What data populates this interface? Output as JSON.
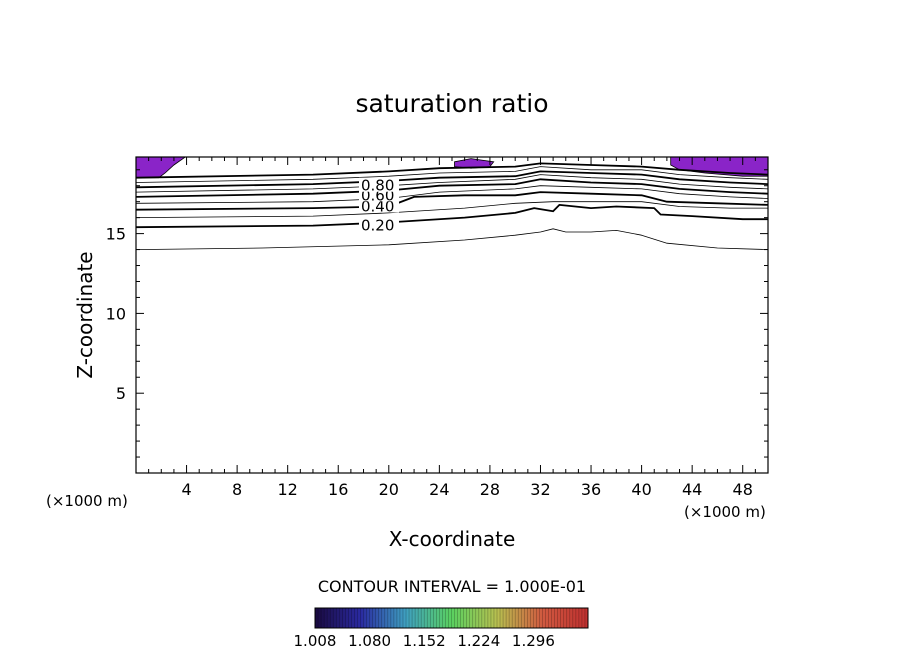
{
  "chart_data": {
    "type": "contour",
    "title": "saturation ratio",
    "xlabel": "X-coordinate",
    "ylabel": "Z-coordinate",
    "x_unit_left": "(×1000 m)",
    "x_unit_right": "(×1000 m)",
    "xlim": [
      0,
      50
    ],
    "ylim": [
      0,
      19.8
    ],
    "x_ticks": [
      4,
      8,
      12,
      16,
      20,
      24,
      28,
      32,
      36,
      40,
      44,
      48
    ],
    "y_ticks": [
      5,
      10,
      15
    ],
    "contour_interval_text": "CONTOUR INTERVAL = 1.000E-01",
    "contour_labels": [
      {
        "text": "0.20",
        "x": 17.8,
        "y": 15.5
      },
      {
        "text": "0.40",
        "x": 17.8,
        "y": 16.7
      },
      {
        "text": "0.60",
        "x": 17.8,
        "y": 17.4
      },
      {
        "text": "0.80",
        "x": 17.8,
        "y": 18.0
      }
    ],
    "contour_lines": [
      {
        "level": 0.1,
        "bold": false,
        "points": [
          [
            0,
            14.0
          ],
          [
            10,
            14.1
          ],
          [
            20,
            14.3
          ],
          [
            26,
            14.6
          ],
          [
            30,
            14.9
          ],
          [
            32,
            15.1
          ],
          [
            33,
            15.3
          ],
          [
            34,
            15.1
          ],
          [
            36,
            15.1
          ],
          [
            38,
            15.2
          ],
          [
            40,
            14.9
          ],
          [
            42,
            14.4
          ],
          [
            46,
            14.1
          ],
          [
            50,
            14.0
          ]
        ]
      },
      {
        "level": 0.2,
        "bold": true,
        "points": [
          [
            0,
            15.4
          ],
          [
            14,
            15.5
          ],
          [
            20,
            15.7
          ],
          [
            26,
            16.0
          ],
          [
            30,
            16.3
          ],
          [
            31.5,
            16.6
          ],
          [
            33,
            16.4
          ],
          [
            33.5,
            16.8
          ],
          [
            36,
            16.6
          ],
          [
            38,
            16.7
          ],
          [
            41,
            16.6
          ],
          [
            41.5,
            16.2
          ],
          [
            44,
            16.1
          ],
          [
            48,
            15.9
          ],
          [
            50,
            15.9
          ]
        ]
      },
      {
        "level": 0.3,
        "bold": false,
        "points": [
          [
            0,
            16.0
          ],
          [
            14,
            16.1
          ],
          [
            20,
            16.3
          ],
          [
            26,
            16.6
          ],
          [
            30,
            16.9
          ],
          [
            33,
            17.0
          ],
          [
            36,
            17.0
          ],
          [
            40,
            17.0
          ],
          [
            43,
            16.7
          ],
          [
            47,
            16.6
          ],
          [
            50,
            16.6
          ]
        ]
      },
      {
        "level": 0.4,
        "bold": true,
        "points": [
          [
            0,
            16.5
          ],
          [
            14,
            16.6
          ],
          [
            20,
            16.7
          ],
          [
            22,
            17.3
          ],
          [
            26,
            17.4
          ],
          [
            30,
            17.4
          ],
          [
            32,
            17.6
          ],
          [
            36,
            17.5
          ],
          [
            40,
            17.4
          ],
          [
            42,
            17.0
          ],
          [
            46,
            16.9
          ],
          [
            50,
            16.8
          ]
        ]
      },
      {
        "level": 0.5,
        "bold": false,
        "points": [
          [
            0,
            16.9
          ],
          [
            14,
            17.0
          ],
          [
            20,
            17.2
          ],
          [
            24,
            17.6
          ],
          [
            30,
            17.8
          ],
          [
            32,
            18.0
          ],
          [
            36,
            17.9
          ],
          [
            40,
            17.8
          ],
          [
            43,
            17.5
          ],
          [
            47,
            17.3
          ],
          [
            50,
            17.2
          ]
        ]
      },
      {
        "level": 0.6,
        "bold": true,
        "points": [
          [
            0,
            17.3
          ],
          [
            14,
            17.5
          ],
          [
            20,
            17.7
          ],
          [
            24,
            18.0
          ],
          [
            30,
            18.1
          ],
          [
            32,
            18.4
          ],
          [
            36,
            18.2
          ],
          [
            40,
            18.1
          ],
          [
            43,
            17.8
          ],
          [
            47,
            17.6
          ],
          [
            50,
            17.5
          ]
        ]
      },
      {
        "level": 0.7,
        "bold": false,
        "points": [
          [
            0,
            17.6
          ],
          [
            14,
            17.8
          ],
          [
            20,
            18.0
          ],
          [
            24,
            18.2
          ],
          [
            30,
            18.4
          ],
          [
            32,
            18.7
          ],
          [
            36,
            18.5
          ],
          [
            40,
            18.4
          ],
          [
            43,
            18.1
          ],
          [
            47,
            17.9
          ],
          [
            50,
            17.8
          ]
        ]
      },
      {
        "level": 0.8,
        "bold": true,
        "points": [
          [
            0,
            17.9
          ],
          [
            14,
            18.1
          ],
          [
            20,
            18.3
          ],
          [
            24,
            18.5
          ],
          [
            30,
            18.6
          ],
          [
            32,
            18.9
          ],
          [
            36,
            18.8
          ],
          [
            40,
            18.7
          ],
          [
            43,
            18.4
          ],
          [
            47,
            18.2
          ],
          [
            50,
            18.1
          ]
        ]
      },
      {
        "level": 0.9,
        "bold": false,
        "points": [
          [
            0,
            18.2
          ],
          [
            14,
            18.4
          ],
          [
            20,
            18.6
          ],
          [
            24,
            18.8
          ],
          [
            30,
            18.9
          ],
          [
            32,
            19.2
          ],
          [
            36,
            19.0
          ],
          [
            40,
            19.0
          ],
          [
            43,
            18.7
          ],
          [
            47,
            18.5
          ],
          [
            50,
            18.4
          ]
        ]
      },
      {
        "level": 1.0,
        "bold": true,
        "points": [
          [
            0,
            18.5
          ],
          [
            14,
            18.7
          ],
          [
            20,
            18.9
          ],
          [
            24,
            19.1
          ],
          [
            30,
            19.2
          ],
          [
            32,
            19.4
          ],
          [
            36,
            19.3
          ],
          [
            40,
            19.2
          ],
          [
            43,
            19.0
          ],
          [
            47,
            18.8
          ],
          [
            50,
            18.7
          ]
        ]
      }
    ],
    "shaded_regions": [
      {
        "points": [
          [
            0,
            19.8
          ],
          [
            3.9,
            19.8
          ],
          [
            3.0,
            19.3
          ],
          [
            2.3,
            18.8
          ],
          [
            1.8,
            18.5
          ],
          [
            0,
            18.5
          ]
        ]
      },
      {
        "points": [
          [
            25.2,
            19.5
          ],
          [
            26.5,
            19.7
          ],
          [
            28.3,
            19.5
          ],
          [
            28.0,
            19.2
          ],
          [
            26.5,
            19.1
          ],
          [
            25.2,
            19.2
          ]
        ]
      },
      {
        "points": [
          [
            42.3,
            19.8
          ],
          [
            50,
            19.8
          ],
          [
            50,
            18.6
          ],
          [
            48,
            18.6
          ],
          [
            45,
            18.8
          ],
          [
            43,
            19.0
          ],
          [
            42.3,
            19.3
          ]
        ]
      }
    ],
    "colorbar": {
      "min": 1.008,
      "max": 1.368,
      "tick_labels": [
        "1.008",
        "1.080",
        "1.152",
        "1.224",
        "1.296"
      ],
      "stops": [
        "#1a0a40",
        "#2a2aa0",
        "#3fa0c0",
        "#5ad060",
        "#b8c050",
        "#d05a40",
        "#c03030"
      ]
    },
    "fill_color": "#8a24c8"
  }
}
